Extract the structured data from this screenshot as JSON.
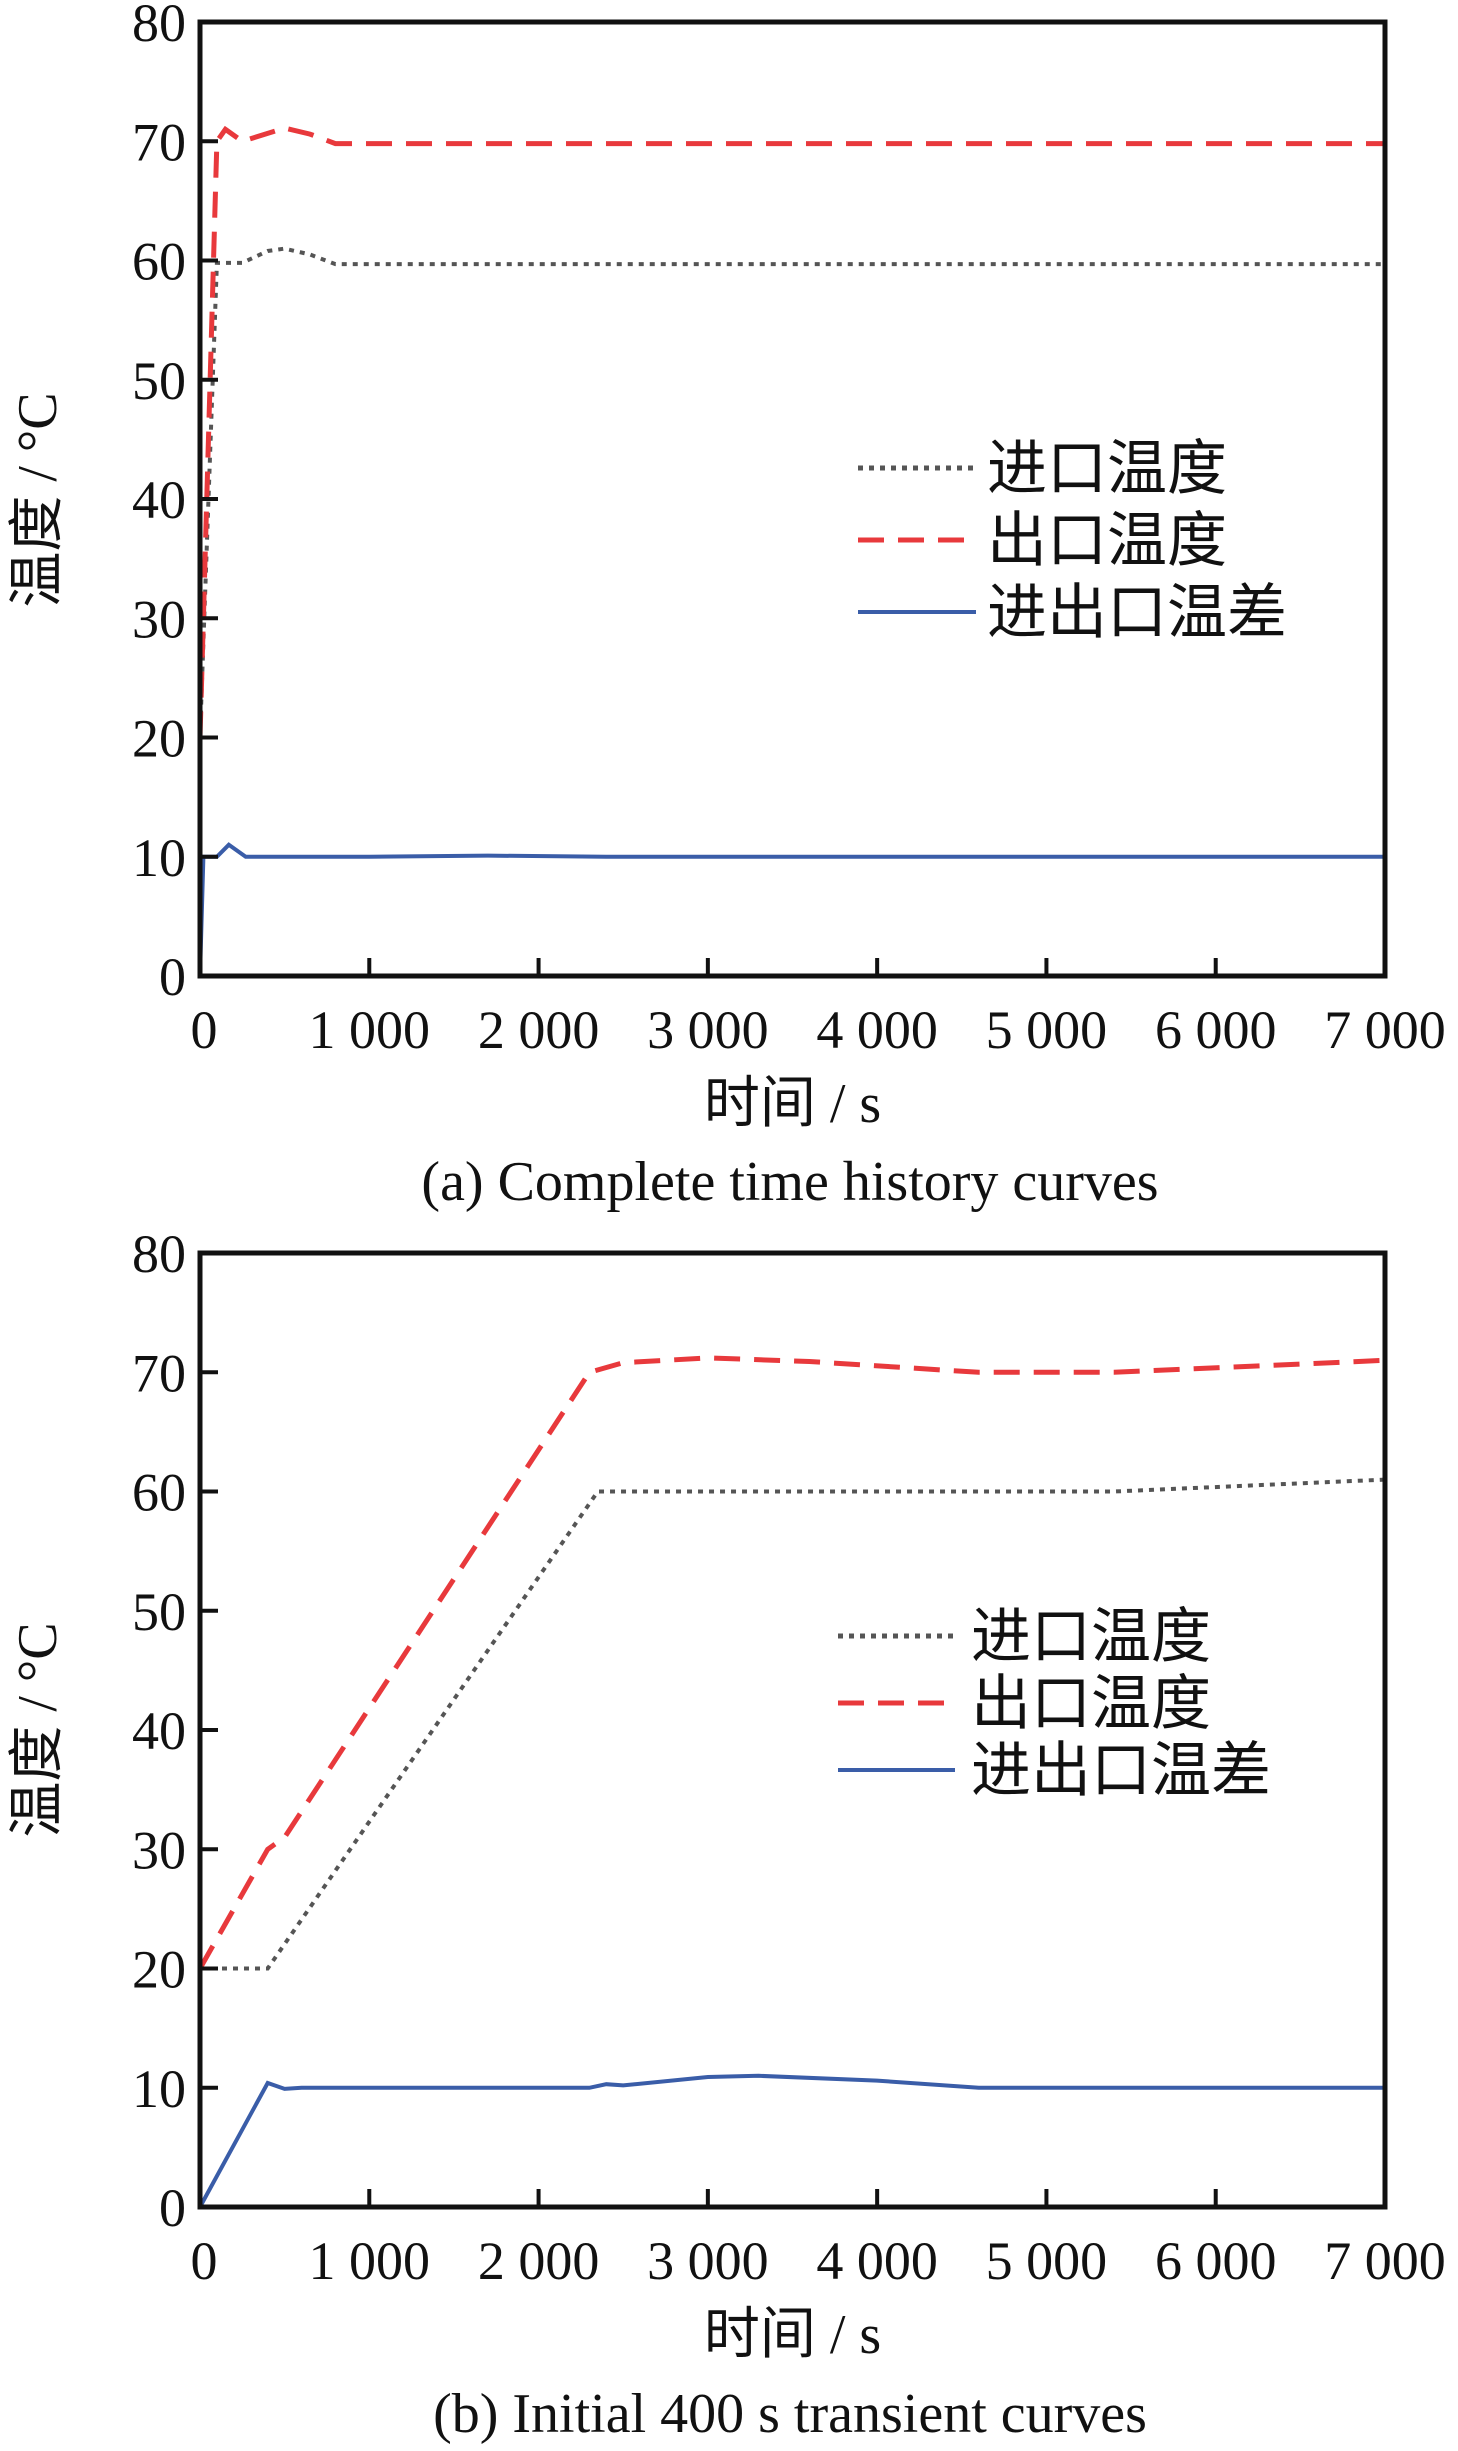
{
  "chart_data": [
    {
      "type": "line",
      "title": "(a) Complete time history curves",
      "xlabel": "时间 / s",
      "ylabel": "温度 / °C",
      "xlim": [
        0,
        7000
      ],
      "ylim": [
        0,
        80
      ],
      "xticks": [
        0,
        1000,
        2000,
        3000,
        4000,
        5000,
        6000,
        7000
      ],
      "xtick_labels": [
        "0",
        "1 000",
        "2 000",
        "3 000",
        "4 000",
        "5 000",
        "6 000",
        "7 000"
      ],
      "yticks": [
        0,
        10,
        20,
        30,
        40,
        50,
        60,
        70,
        80
      ],
      "ytick_labels": [
        "0",
        "10",
        "20",
        "30",
        "40",
        "50",
        "60",
        "70",
        "80"
      ],
      "grid": false,
      "legend_position": "center-right",
      "series": [
        {
          "name": "进口温度",
          "color": "#555555",
          "style": "dotted",
          "x": [
            0,
            100,
            250,
            400,
            500,
            650,
            800,
            7000
          ],
          "y": [
            20,
            59.8,
            59.8,
            60.8,
            61,
            60.5,
            59.7,
            59.7
          ]
        },
        {
          "name": "出口温度",
          "color": "#e8393c",
          "style": "dashed",
          "x": [
            0,
            100,
            150,
            250,
            500,
            650,
            800,
            7000
          ],
          "y": [
            20,
            70,
            71,
            70,
            71.1,
            70.6,
            69.8,
            69.8
          ]
        },
        {
          "name": "进出口温差",
          "color": "#3a5da8",
          "style": "solid",
          "x": [
            0,
            20,
            100,
            170,
            270,
            1000,
            1700,
            2400,
            7000
          ],
          "y": [
            0,
            10,
            10,
            11,
            10,
            10,
            10.1,
            10,
            10
          ]
        }
      ]
    },
    {
      "type": "line",
      "title": "(b) Initial 400 s transient curves",
      "xlabel": "时间 / s",
      "ylabel": "温度 / °C",
      "xlim": [
        0,
        7000
      ],
      "ylim": [
        0,
        80
      ],
      "xticks": [
        0,
        1000,
        2000,
        3000,
        4000,
        5000,
        6000,
        7000
      ],
      "xtick_labels": [
        "0",
        "1 000",
        "2 000",
        "3 000",
        "4 000",
        "5 000",
        "6 000",
        "7 000"
      ],
      "yticks": [
        0,
        10,
        20,
        30,
        40,
        50,
        60,
        70,
        80
      ],
      "ytick_labels": [
        "0",
        "10",
        "20",
        "30",
        "40",
        "50",
        "60",
        "70",
        "80"
      ],
      "grid": false,
      "legend_position": "center-right",
      "series": [
        {
          "name": "进口温度",
          "color": "#555555",
          "style": "dotted",
          "x": [
            0,
            400,
            2350,
            5400,
            7000
          ],
          "y": [
            20,
            20,
            60,
            60,
            61
          ]
        },
        {
          "name": "出口温度",
          "color": "#e8393c",
          "style": "dashed",
          "x": [
            0,
            400,
            500,
            2300,
            2500,
            3000,
            3600,
            4600,
            5400,
            7000
          ],
          "y": [
            20,
            30,
            31,
            70,
            70.8,
            71.2,
            70.9,
            70,
            70,
            71
          ]
        },
        {
          "name": "进出口温差",
          "color": "#3a5da8",
          "style": "solid",
          "x": [
            0,
            400,
            500,
            600,
            2300,
            2400,
            2500,
            3000,
            3300,
            4000,
            4600,
            7000
          ],
          "y": [
            0,
            10.4,
            9.9,
            10,
            10,
            10.3,
            10.2,
            10.9,
            11,
            10.6,
            10,
            10
          ]
        }
      ]
    }
  ]
}
